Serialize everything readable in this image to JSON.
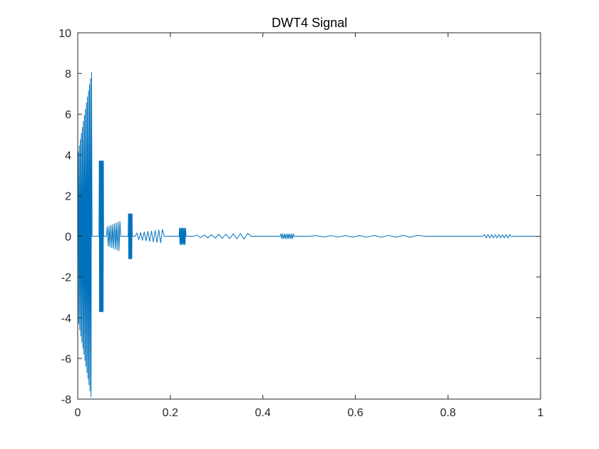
{
  "chart_data": {
    "type": "line",
    "title": "DWT4 Signal",
    "xlabel": "",
    "ylabel": "",
    "xlim": [
      0,
      1
    ],
    "ylim": [
      -8,
      10
    ],
    "x_ticks": [
      0,
      0.2,
      0.4,
      0.6,
      0.8,
      1
    ],
    "x_tick_labels": [
      "0",
      "0.2",
      "0.4",
      "0.6",
      "0.8",
      "1"
    ],
    "y_ticks": [
      -8,
      -6,
      -4,
      -2,
      0,
      2,
      4,
      6,
      8,
      10
    ],
    "y_tick_labels": [
      "-8",
      "-6",
      "-4",
      "-2",
      "0",
      "2",
      "4",
      "6",
      "8",
      "10"
    ],
    "grid": false,
    "line_color": "#0072BD",
    "series": [
      {
        "segments": [
          {
            "x_start": 0.0,
            "x_end": 0.031,
            "amplitude_start": 4.0,
            "amplitude_end": 8.2,
            "cycles": 14
          },
          {
            "x_start": 0.046,
            "x_end": 0.056,
            "amplitude_start": 3.7,
            "amplitude_end": 3.7,
            "cycles": 10
          },
          {
            "x_start": 0.062,
            "x_end": 0.093,
            "amplitude_start": 0.45,
            "amplitude_end": 0.75,
            "cycles": 8
          },
          {
            "x_start": 0.109,
            "x_end": 0.118,
            "amplitude_start": 1.1,
            "amplitude_end": 1.1,
            "cycles": 8
          },
          {
            "x_start": 0.124,
            "x_end": 0.187,
            "amplitude_start": 0.15,
            "amplitude_end": 0.35,
            "cycles": 8
          },
          {
            "x_start": 0.219,
            "x_end": 0.234,
            "amplitude_start": 0.4,
            "amplitude_end": 0.4,
            "cycles": 8
          },
          {
            "x_start": 0.25,
            "x_end": 0.375,
            "amplitude_start": 0.05,
            "amplitude_end": 0.15,
            "cycles": 8
          },
          {
            "x_start": 0.437,
            "x_end": 0.468,
            "amplitude_start": 0.12,
            "amplitude_end": 0.12,
            "cycles": 8
          },
          {
            "x_start": 0.5,
            "x_end": 0.75,
            "amplitude_start": 0.03,
            "amplitude_end": 0.05,
            "cycles": 8
          },
          {
            "x_start": 0.875,
            "x_end": 0.937,
            "amplitude_start": 0.08,
            "amplitude_end": 0.08,
            "cycles": 8
          }
        ]
      }
    ]
  }
}
